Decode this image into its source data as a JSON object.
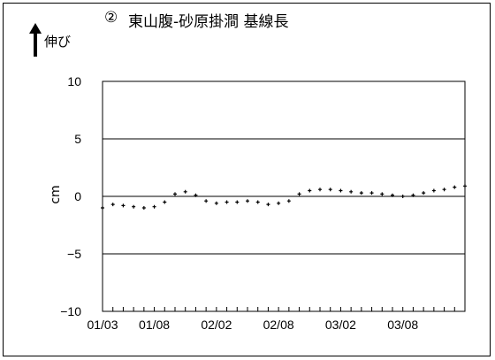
{
  "header": {
    "number": "②",
    "title": "東山腹-砂原掛澗 基線長",
    "direction_label": "伸び",
    "arrow_icon": "up-arrow-icon"
  },
  "colors": {
    "points": "#000000",
    "axis": "#000000",
    "background": "#ffffff"
  },
  "chart_data": {
    "type": "scatter",
    "title": "東山腹-砂原掛澗 基線長",
    "xlabel": "",
    "ylabel": "cm",
    "ylim": [
      -10,
      10
    ],
    "yticks": [
      -10,
      -5,
      0,
      5,
      10
    ],
    "xlim": [
      "2001-03",
      "2004-02"
    ],
    "xtick_labels": [
      "01/03",
      "01/08",
      "02/02",
      "02/08",
      "03/02",
      "03/08"
    ],
    "grid": "horizontal at 5, 0, -5",
    "series": [
      {
        "x": [
          "2001-03",
          "2001-04",
          "2001-05",
          "2001-06",
          "2001-07",
          "2001-08",
          "2001-09",
          "2001-10",
          "2001-11",
          "2001-12",
          "2002-01",
          "2002-02",
          "2002-03",
          "2002-04",
          "2002-05",
          "2002-06",
          "2002-07",
          "2002-08",
          "2002-09",
          "2002-10",
          "2002-11",
          "2002-12",
          "2003-01",
          "2003-02",
          "2003-03",
          "2003-04",
          "2003-05",
          "2003-06",
          "2003-07",
          "2003-08",
          "2003-09",
          "2003-10",
          "2003-11",
          "2003-12",
          "2004-01",
          "2004-02"
        ],
        "y": [
          -1.0,
          -0.7,
          -0.8,
          -0.9,
          -1.0,
          -0.9,
          -0.5,
          0.2,
          0.4,
          0.1,
          -0.4,
          -0.6,
          -0.5,
          -0.5,
          -0.4,
          -0.5,
          -0.7,
          -0.6,
          -0.4,
          0.2,
          0.5,
          0.6,
          0.6,
          0.5,
          0.4,
          0.3,
          0.3,
          0.2,
          0.1,
          0.0,
          0.1,
          0.3,
          0.5,
          0.6,
          0.8,
          0.9
        ]
      }
    ]
  }
}
